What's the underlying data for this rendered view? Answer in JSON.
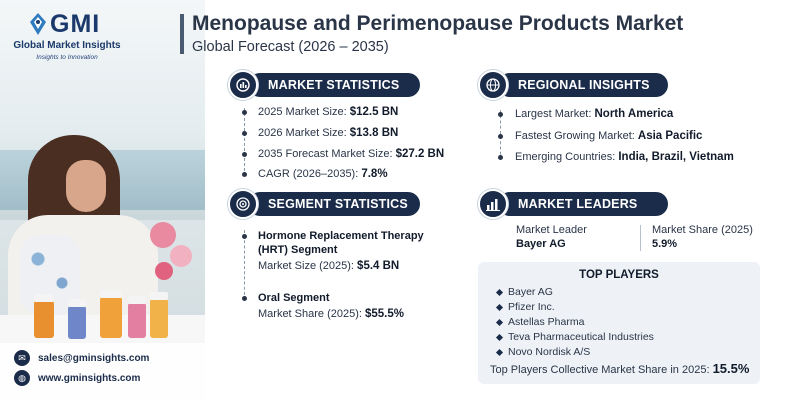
{
  "logo": {
    "mark": "GMI",
    "name": "Global Market Insights",
    "tagline": "Insights to Innovation"
  },
  "header": {
    "title": "Menopause and Perimenopause Products Market",
    "subtitle": "Global Forecast (2026 – 2035)"
  },
  "market_statistics": {
    "heading": "MARKET STATISTICS",
    "icon": "globe-chart-icon",
    "rows": [
      {
        "label": "2025 Market Size:",
        "value": "$12.5 BN"
      },
      {
        "label": "2026 Market Size:",
        "value": "$13.8 BN"
      },
      {
        "label": "2035 Forecast Market Size:",
        "value": "$27.2 BN"
      },
      {
        "label": "CAGR (2026–2035):",
        "value": "7.8%"
      }
    ]
  },
  "regional_insights": {
    "heading": "REGIONAL INSIGHTS",
    "icon": "globe-icon",
    "rows": [
      {
        "label": "Largest Market:",
        "value": "North America"
      },
      {
        "label": "Fastest Growing Market:",
        "value": "Asia Pacific"
      },
      {
        "label": "Emerging Countries:",
        "value": "India, Brazil, Vietnam"
      }
    ]
  },
  "segment_statistics": {
    "heading": "SEGMENT STATISTICS",
    "icon": "target-icon",
    "segments": [
      {
        "name_line1": "Hormone Replacement Therapy",
        "name_line2": "(HRT) Segment",
        "metric": "Market Size (2025):",
        "value": "$5.4 BN"
      },
      {
        "name_line1": "Oral Segment",
        "name_line2": "",
        "metric": "Market Share (2025):",
        "value": "$55.5%"
      }
    ]
  },
  "market_leaders": {
    "heading": "MARKET LEADERS",
    "icon": "bar-chart-icon",
    "leader_label": "Market Leader",
    "leader_value": "Bayer AG",
    "share_label": "Market Share (2025)",
    "share_value": "5.9%"
  },
  "top_players": {
    "heading": "TOP PLAYERS",
    "items": [
      "Bayer AG",
      "Pfizer Inc.",
      "Astellas Pharma",
      "Teva Pharmaceutical Industries",
      "Novo Nordisk A/S"
    ],
    "footer_label": "Top Players Collective Market Share in 2025:",
    "footer_value": "15.5%"
  },
  "contacts": {
    "email": "sales@gminsights.com",
    "website": "www.gminsights.com",
    "email_icon": "mail-icon",
    "web_icon": "globe-icon"
  },
  "colors": {
    "navy": "#1b2c4a",
    "pill_light": "#dfe8f0",
    "box_bg": "#eef2f6"
  }
}
